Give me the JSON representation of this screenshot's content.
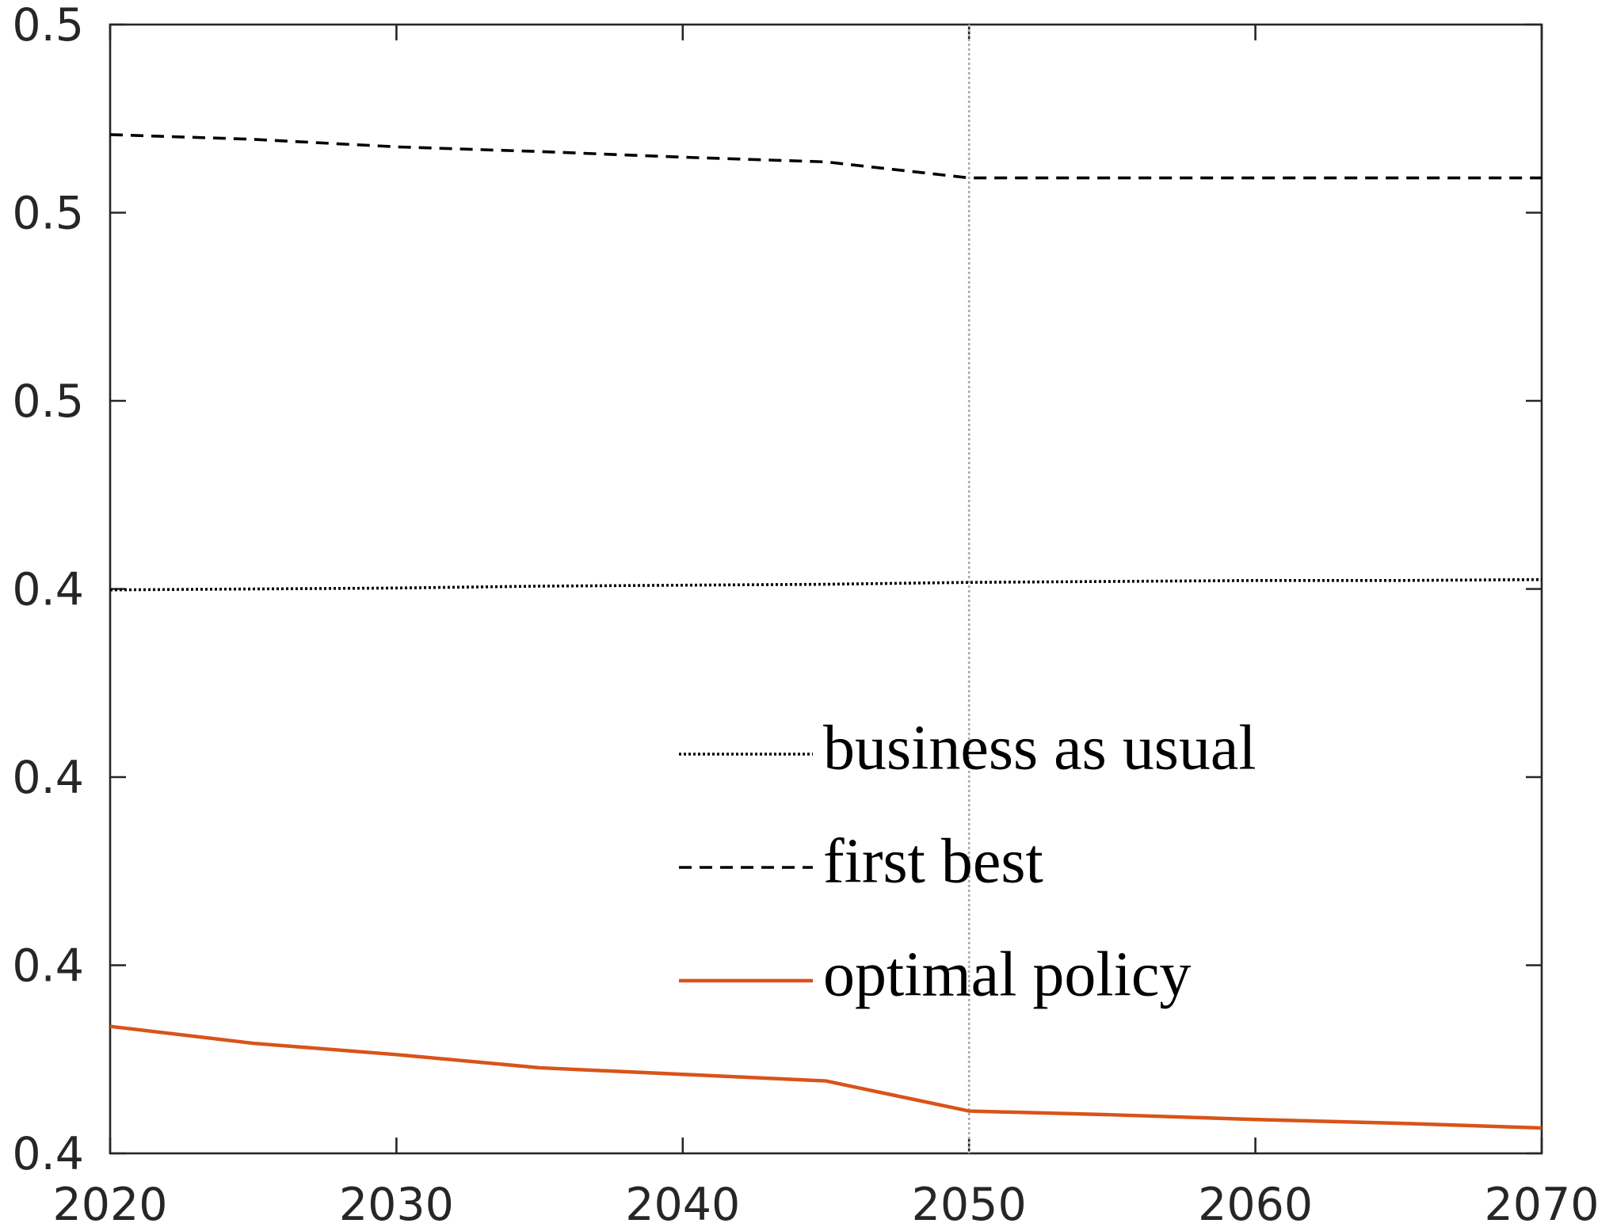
{
  "chart_data": {
    "type": "line",
    "x": [
      2020,
      2025,
      2030,
      2035,
      2040,
      2045,
      2050,
      2055,
      2060,
      2065,
      2070
    ],
    "series": [
      {
        "name": "business as usual",
        "color": "#000000",
        "dash": "dotted",
        "values": [
          0.4399,
          0.44,
          0.4401,
          0.4403,
          0.4404,
          0.4405,
          0.4407,
          0.4408,
          0.4409,
          0.4409,
          0.441
        ]
      },
      {
        "name": "first best",
        "color": "#000000",
        "dash": "dashed",
        "values": [
          0.4883,
          0.4878,
          0.487,
          0.4865,
          0.4859,
          0.4854,
          0.4837,
          0.4837,
          0.4837,
          0.4837,
          0.4837
        ]
      },
      {
        "name": "optimal policy",
        "color": "#d95319",
        "dash": "solid",
        "values": [
          0.3935,
          0.3917,
          0.3905,
          0.3891,
          0.3884,
          0.3877,
          0.3845,
          0.3841,
          0.3836,
          0.3832,
          0.3827
        ]
      }
    ],
    "xlim": [
      2020,
      2070
    ],
    "xticks": [
      2020,
      2030,
      2040,
      2050,
      2060,
      2070
    ],
    "ylim": [
      0.38,
      0.5
    ],
    "yticks": [
      {
        "value": 0.38,
        "label": "0.4"
      },
      {
        "value": 0.4,
        "label": "0.4"
      },
      {
        "value": 0.42,
        "label": "0.4"
      },
      {
        "value": 0.44,
        "label": "0.4"
      },
      {
        "value": 0.46,
        "label": "0.5"
      },
      {
        "value": 0.48,
        "label": "0.5"
      },
      {
        "value": 0.5,
        "label": "0.5"
      }
    ],
    "vline_x": 2050,
    "grid": false
  }
}
